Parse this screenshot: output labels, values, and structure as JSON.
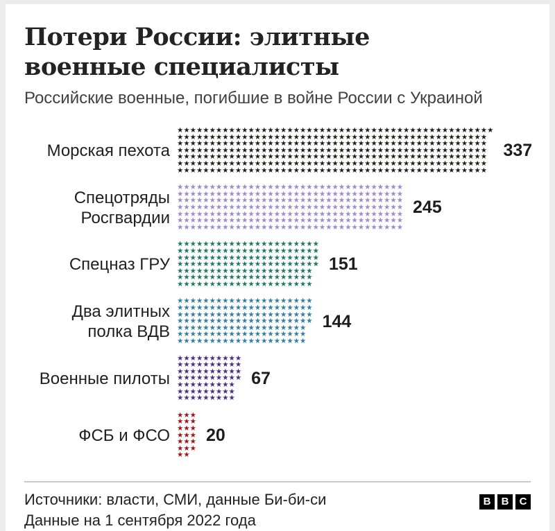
{
  "header": {
    "title": "Потери России: элитные военные специалисты",
    "subtitle": "Российские военные, погибшие в войне России с Украиной"
  },
  "chart_data": {
    "type": "bar",
    "style": "pictogram",
    "icon": "★",
    "icon_unit": 1,
    "rows_per_block": 7,
    "fill_order": "column-major",
    "categories": [
      "Морская пехота",
      "Спецотряды Росгвардии",
      "Спецназ ГРУ",
      "Два элитных полка ВДВ",
      "Военные пилоты",
      "ФСБ и ФСО"
    ],
    "values": [
      337,
      245,
      151,
      144,
      67,
      20
    ],
    "colors": [
      "#1d1d1b",
      "#9c8ccc",
      "#1b7a5d",
      "#2f7fa0",
      "#4c2c82",
      "#a11414"
    ],
    "title": "Потери России: элитные военные специалисты",
    "xlabel": "",
    "ylabel": "",
    "legend": "none",
    "grid": false,
    "value_labels_shown": true
  },
  "footer": {
    "source_line": "Источники: власти, СМИ, данные Би-би-си",
    "date_line": "Данные на 1 сентября 2022 года",
    "logo": {
      "letters": [
        "B",
        "B",
        "C"
      ],
      "bg": "#000000",
      "fg": "#ffffff"
    }
  }
}
